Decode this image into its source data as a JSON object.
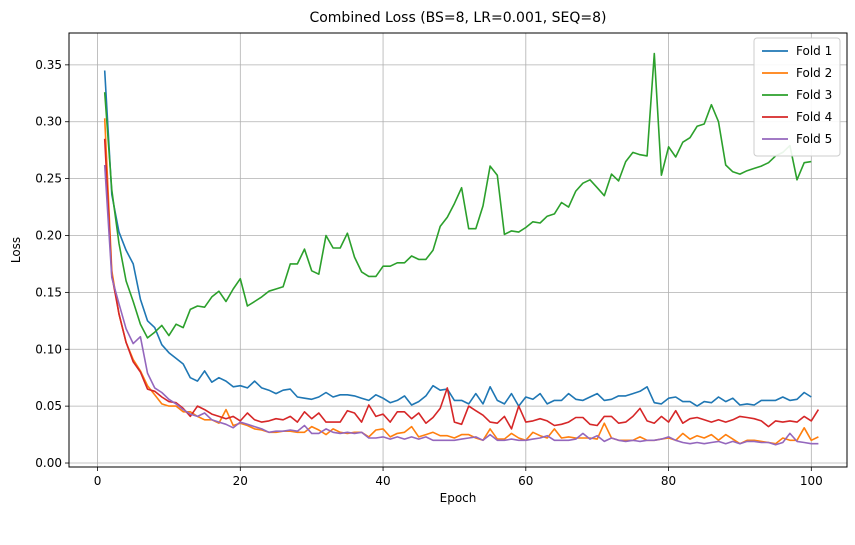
{
  "chart_data": {
    "type": "line",
    "title": "Combined Loss (BS=8, LR=0.001, SEQ=8)",
    "xlabel": "Epoch",
    "ylabel": "Loss",
    "xlim": [
      -4,
      105
    ],
    "ylim": [
      -0.0035,
      0.378
    ],
    "xticks": [
      0,
      20,
      40,
      60,
      80,
      100
    ],
    "yticks": [
      0.0,
      0.05,
      0.1,
      0.15,
      0.2,
      0.25,
      0.3,
      0.35
    ],
    "grid": true,
    "legend_position": "top-right",
    "x_start": 1,
    "series": [
      {
        "name": "Fold 1",
        "color": "#1f77b4",
        "values": [
          0.345,
          0.236,
          0.203,
          0.187,
          0.175,
          0.144,
          0.125,
          0.119,
          0.104,
          0.097,
          0.092,
          0.087,
          0.075,
          0.072,
          0.081,
          0.071,
          0.075,
          0.072,
          0.067,
          0.068,
          0.066,
          0.072,
          0.066,
          0.064,
          0.061,
          0.064,
          0.065,
          0.058,
          0.057,
          0.056,
          0.058,
          0.062,
          0.058,
          0.06,
          0.06,
          0.059,
          0.057,
          0.055,
          0.06,
          0.057,
          0.053,
          0.055,
          0.059,
          0.051,
          0.054,
          0.059,
          0.068,
          0.064,
          0.065,
          0.055,
          0.055,
          0.052,
          0.061,
          0.052,
          0.067,
          0.055,
          0.052,
          0.061,
          0.05,
          0.058,
          0.056,
          0.061,
          0.052,
          0.055,
          0.055,
          0.061,
          0.056,
          0.055,
          0.058,
          0.061,
          0.055,
          0.056,
          0.059,
          0.059,
          0.061,
          0.063,
          0.067,
          0.053,
          0.052,
          0.057,
          0.058,
          0.054,
          0.054,
          0.05,
          0.054,
          0.053,
          0.058,
          0.054,
          0.057,
          0.051,
          0.052,
          0.051,
          0.055,
          0.055,
          0.055,
          0.058,
          0.055,
          0.056,
          0.062,
          0.058
        ]
      },
      {
        "name": "Fold 2",
        "color": "#ff7f0e",
        "values": [
          0.303,
          0.169,
          0.131,
          0.106,
          0.091,
          0.081,
          0.068,
          0.06,
          0.052,
          0.05,
          0.05,
          0.045,
          0.045,
          0.041,
          0.038,
          0.038,
          0.035,
          0.047,
          0.033,
          0.035,
          0.033,
          0.03,
          0.029,
          0.027,
          0.027,
          0.028,
          0.028,
          0.027,
          0.027,
          0.032,
          0.029,
          0.025,
          0.03,
          0.027,
          0.026,
          0.027,
          0.027,
          0.023,
          0.029,
          0.03,
          0.023,
          0.026,
          0.027,
          0.032,
          0.023,
          0.025,
          0.027,
          0.024,
          0.024,
          0.022,
          0.025,
          0.025,
          0.022,
          0.02,
          0.03,
          0.021,
          0.021,
          0.026,
          0.022,
          0.02,
          0.027,
          0.024,
          0.022,
          0.03,
          0.022,
          0.023,
          0.022,
          0.022,
          0.022,
          0.021,
          0.035,
          0.022,
          0.02,
          0.02,
          0.02,
          0.023,
          0.02,
          0.02,
          0.021,
          0.022,
          0.02,
          0.026,
          0.021,
          0.024,
          0.022,
          0.025,
          0.02,
          0.025,
          0.021,
          0.017,
          0.02,
          0.02,
          0.019,
          0.018,
          0.017,
          0.022,
          0.02,
          0.02,
          0.031,
          0.02,
          0.023
        ]
      },
      {
        "name": "Fold 3",
        "color": "#2ca02c",
        "values": [
          0.326,
          0.24,
          0.193,
          0.16,
          0.142,
          0.122,
          0.11,
          0.115,
          0.121,
          0.112,
          0.122,
          0.119,
          0.135,
          0.138,
          0.137,
          0.146,
          0.151,
          0.142,
          0.153,
          0.162,
          0.138,
          0.142,
          0.146,
          0.151,
          0.153,
          0.155,
          0.175,
          0.175,
          0.188,
          0.169,
          0.166,
          0.2,
          0.189,
          0.189,
          0.202,
          0.181,
          0.168,
          0.164,
          0.164,
          0.173,
          0.173,
          0.176,
          0.176,
          0.182,
          0.179,
          0.179,
          0.187,
          0.208,
          0.216,
          0.228,
          0.242,
          0.206,
          0.206,
          0.226,
          0.261,
          0.253,
          0.201,
          0.204,
          0.203,
          0.207,
          0.212,
          0.211,
          0.217,
          0.219,
          0.229,
          0.225,
          0.239,
          0.246,
          0.249,
          0.242,
          0.235,
          0.254,
          0.248,
          0.265,
          0.273,
          0.271,
          0.27,
          0.36,
          0.253,
          0.278,
          0.269,
          0.282,
          0.286,
          0.296,
          0.298,
          0.315,
          0.3,
          0.262,
          0.256,
          0.254,
          0.257,
          0.259,
          0.261,
          0.264,
          0.27,
          0.273,
          0.279,
          0.249,
          0.264,
          0.265
        ]
      },
      {
        "name": "Fold 4",
        "color": "#d62728",
        "values": [
          0.285,
          0.165,
          0.131,
          0.106,
          0.089,
          0.08,
          0.065,
          0.063,
          0.058,
          0.054,
          0.053,
          0.048,
          0.041,
          0.05,
          0.047,
          0.043,
          0.041,
          0.039,
          0.041,
          0.037,
          0.044,
          0.038,
          0.036,
          0.037,
          0.039,
          0.038,
          0.041,
          0.036,
          0.045,
          0.039,
          0.044,
          0.036,
          0.036,
          0.036,
          0.046,
          0.044,
          0.036,
          0.051,
          0.041,
          0.043,
          0.036,
          0.045,
          0.045,
          0.039,
          0.044,
          0.035,
          0.04,
          0.048,
          0.066,
          0.036,
          0.034,
          0.05,
          0.046,
          0.042,
          0.036,
          0.035,
          0.041,
          0.03,
          0.05,
          0.036,
          0.037,
          0.039,
          0.037,
          0.033,
          0.034,
          0.036,
          0.04,
          0.04,
          0.034,
          0.033,
          0.041,
          0.041,
          0.035,
          0.036,
          0.041,
          0.048,
          0.037,
          0.035,
          0.041,
          0.036,
          0.046,
          0.035,
          0.039,
          0.04,
          0.038,
          0.036,
          0.038,
          0.036,
          0.038,
          0.041,
          0.04,
          0.039,
          0.037,
          0.032,
          0.037,
          0.036,
          0.037,
          0.036,
          0.041,
          0.037,
          0.047
        ]
      },
      {
        "name": "Fold 5",
        "color": "#9467bd",
        "values": [
          0.262,
          0.163,
          0.14,
          0.118,
          0.105,
          0.111,
          0.079,
          0.066,
          0.062,
          0.056,
          0.052,
          0.047,
          0.043,
          0.041,
          0.044,
          0.038,
          0.036,
          0.034,
          0.031,
          0.036,
          0.034,
          0.032,
          0.03,
          0.027,
          0.028,
          0.028,
          0.029,
          0.028,
          0.033,
          0.026,
          0.026,
          0.03,
          0.027,
          0.026,
          0.027,
          0.026,
          0.027,
          0.022,
          0.022,
          0.023,
          0.021,
          0.023,
          0.021,
          0.023,
          0.021,
          0.023,
          0.02,
          0.02,
          0.02,
          0.02,
          0.021,
          0.022,
          0.023,
          0.02,
          0.025,
          0.02,
          0.02,
          0.021,
          0.02,
          0.02,
          0.021,
          0.022,
          0.024,
          0.02,
          0.02,
          0.02,
          0.021,
          0.026,
          0.021,
          0.024,
          0.019,
          0.022,
          0.02,
          0.019,
          0.02,
          0.019,
          0.02,
          0.02,
          0.021,
          0.023,
          0.02,
          0.018,
          0.017,
          0.018,
          0.017,
          0.018,
          0.019,
          0.017,
          0.019,
          0.017,
          0.019,
          0.019,
          0.018,
          0.018,
          0.016,
          0.018,
          0.026,
          0.019,
          0.018,
          0.017,
          0.017
        ]
      }
    ]
  }
}
